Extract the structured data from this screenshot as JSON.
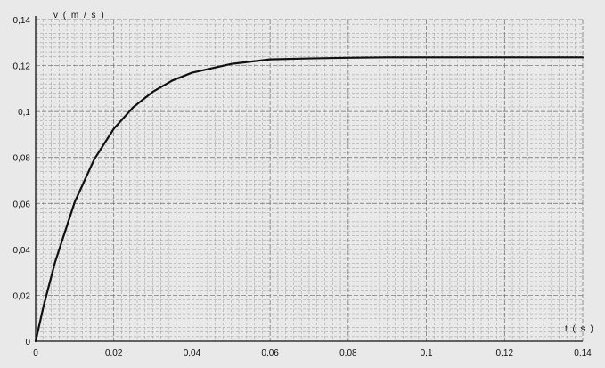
{
  "chart_data": {
    "type": "line",
    "title": "",
    "xlabel": "t ( s )",
    "ylabel": "v ( m / s )",
    "xlim": [
      0,
      0.14
    ],
    "ylim": [
      0,
      0.14
    ],
    "x_ticks": [
      0,
      0.02,
      0.04,
      0.06,
      0.08,
      0.1,
      0.12,
      0.14
    ],
    "x_tick_labels": [
      "0",
      "0,02",
      "0,04",
      "0,06",
      "0,08",
      "0,1",
      "0,12",
      "0,14"
    ],
    "y_ticks": [
      0,
      0.02,
      0.04,
      0.06,
      0.08,
      0.1,
      0.12,
      0.14
    ],
    "y_tick_labels": [
      "0",
      "0,02",
      "0,04",
      "0,06",
      "0,08",
      "0,1",
      "0,12",
      "0,14"
    ],
    "grid": true,
    "legend": "none",
    "series": [
      {
        "color": "#111111",
        "x": [
          0,
          0.002,
          0.005,
          0.01,
          0.015,
          0.02,
          0.025,
          0.03,
          0.035,
          0.04,
          0.05,
          0.06,
          0.07,
          0.08,
          0.09,
          0.1,
          0.11,
          0.12,
          0.13,
          0.14
        ],
        "y": [
          0,
          0.0151,
          0.0346,
          0.0606,
          0.0792,
          0.0925,
          0.1019,
          0.1086,
          0.1135,
          0.1169,
          0.1207,
          0.1227,
          0.1231,
          0.1234,
          0.1236,
          0.1236,
          0.1236,
          0.1236,
          0.1236,
          0.1236
        ]
      }
    ]
  }
}
